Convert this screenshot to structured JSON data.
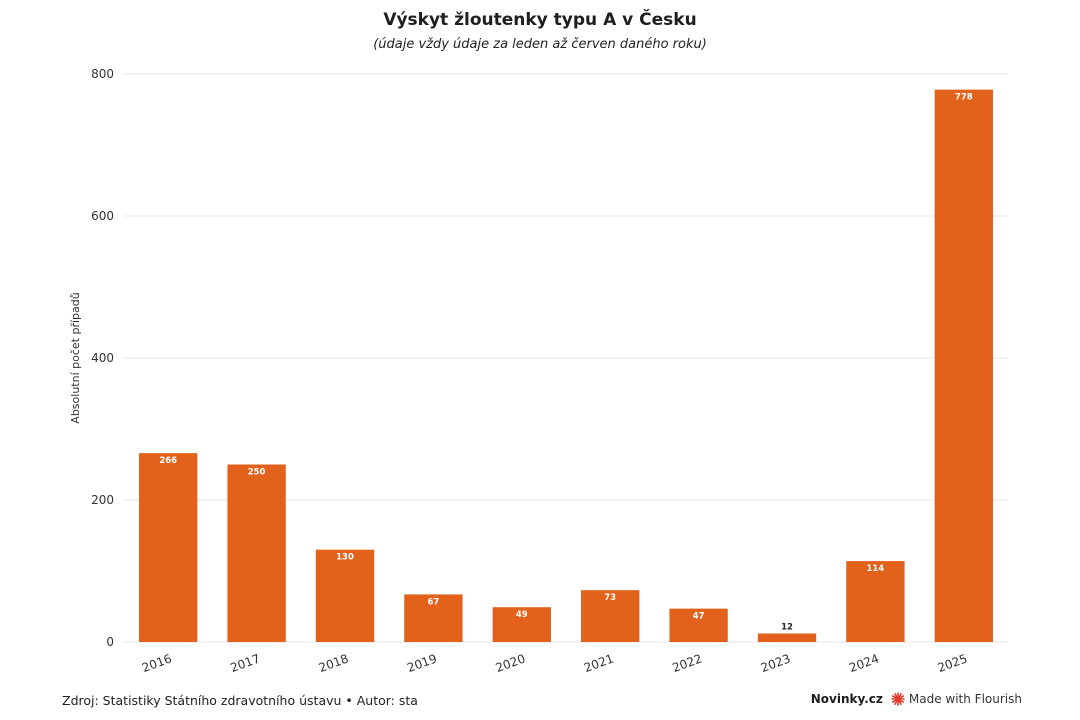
{
  "title": "Výskyt žloutenky typu A v Česku",
  "subtitle": "(údaje vždy údaje za leden až červen daného roku)",
  "footer": {
    "source": "Zdroj: Statistiky Státního zdravotního ústavu • Autor: sta",
    "brand": "Novinky.cz",
    "flourish_label": "Made with Flourish",
    "flourish_icon": "flourish-logo-icon"
  },
  "colors": {
    "bar": "#e2621b",
    "grid": "#e6e6e6",
    "axis_text": "#333333",
    "label_inside": "#ffffff",
    "label_outside": "#222222",
    "flourish": "#e23a2e"
  },
  "chart_data": {
    "type": "bar",
    "title": "Výskyt žloutenky typu A v Česku",
    "subtitle": "(údaje vždy údaje za leden až červen daného roku)",
    "xlabel": "",
    "ylabel": "Absolutní počet případů",
    "categories": [
      "2016",
      "2017",
      "2018",
      "2019",
      "2020",
      "2021",
      "2022",
      "2023",
      "2024",
      "2025"
    ],
    "values": [
      266,
      250,
      130,
      67,
      49,
      73,
      47,
      12,
      114,
      778
    ],
    "ylim": [
      0,
      800
    ],
    "yticks": [
      0,
      200,
      400,
      600,
      800
    ],
    "grid": true,
    "data_labels": true
  }
}
